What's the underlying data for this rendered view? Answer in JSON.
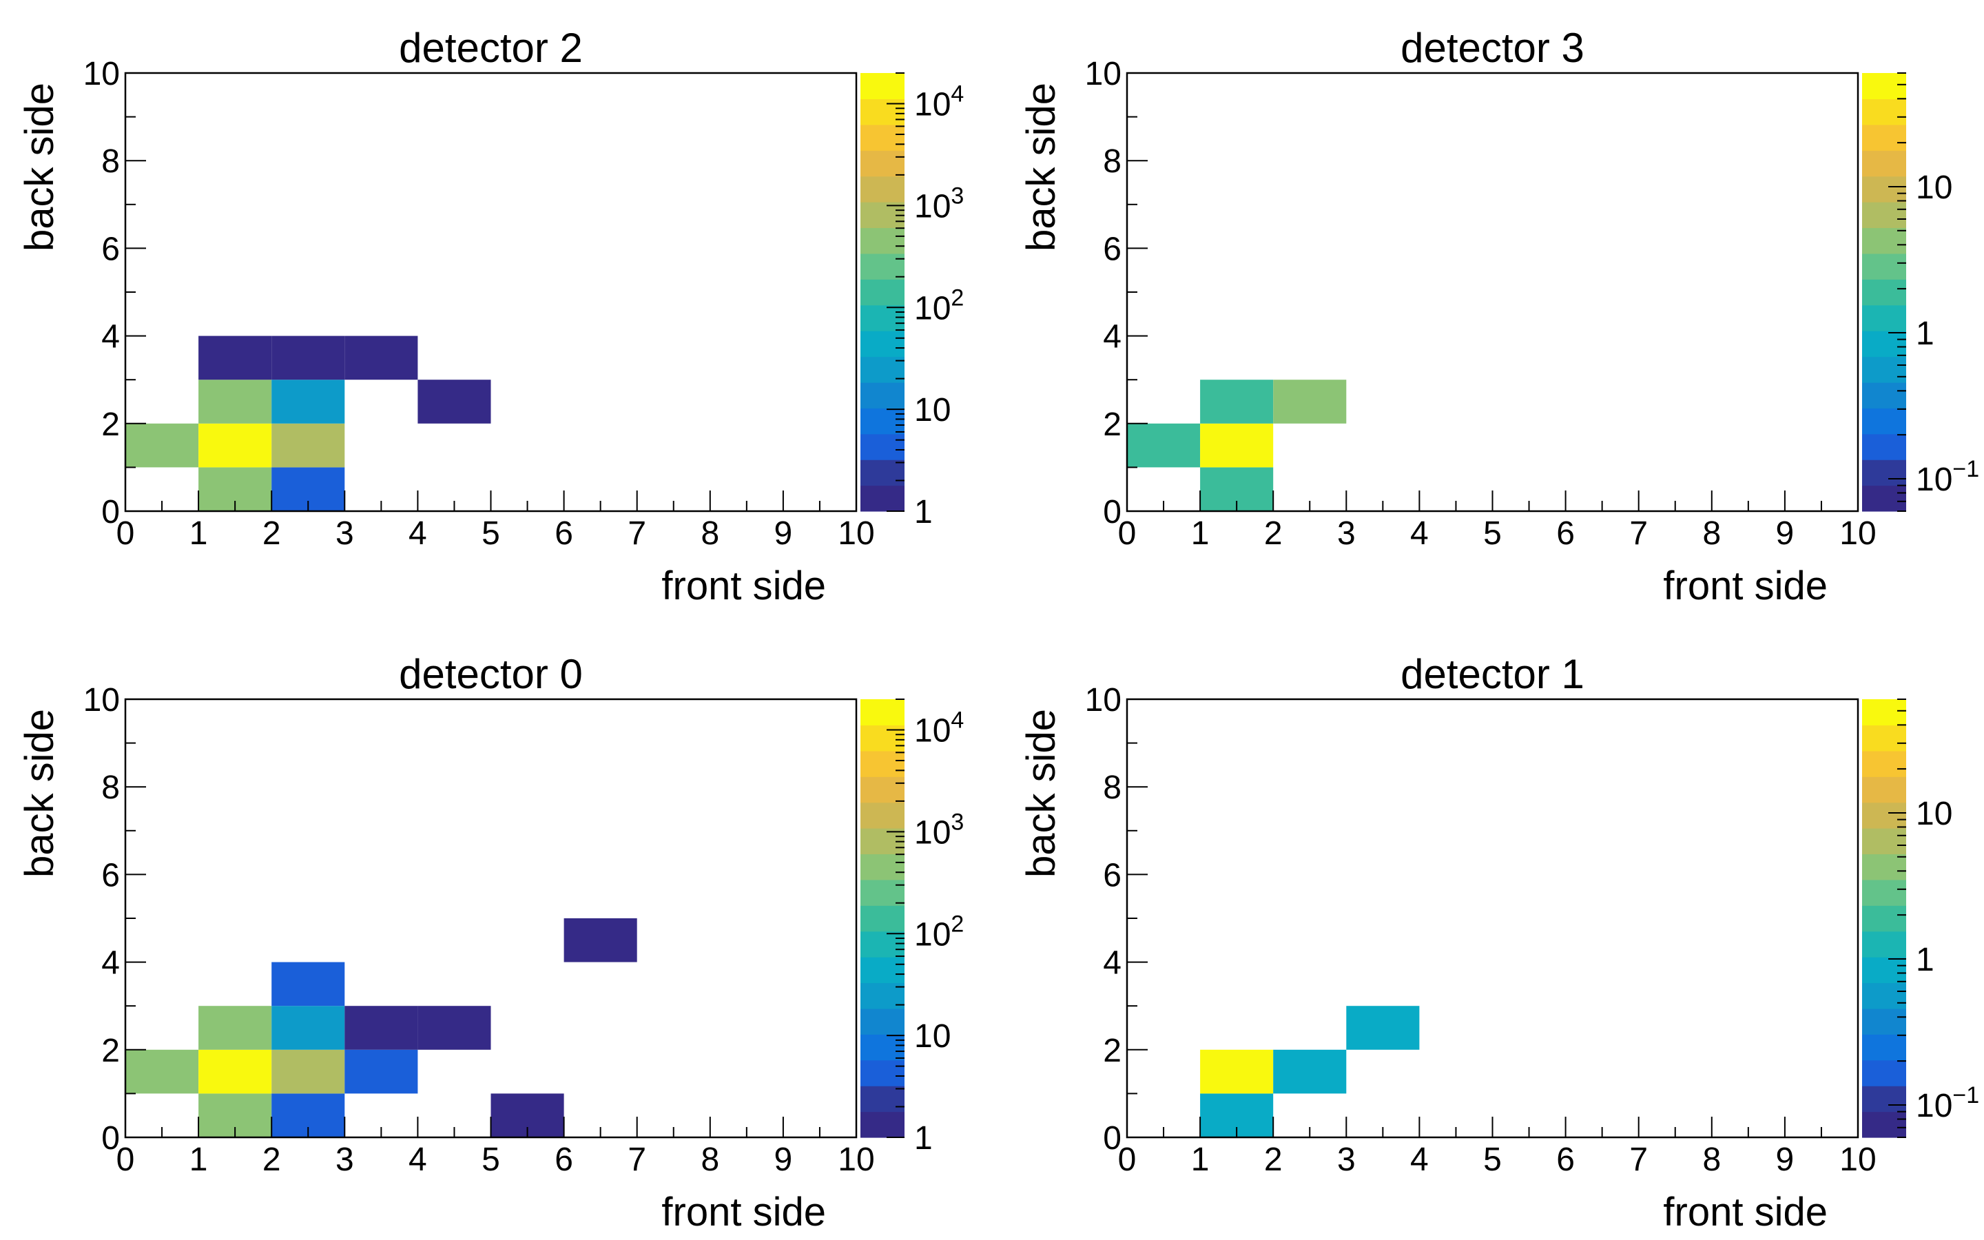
{
  "chart_data": [
    {
      "type": "heatmap",
      "title": "detector 2",
      "xlabel": "front side",
      "ylabel": "back side",
      "xlim": [
        0,
        10
      ],
      "ylim": [
        0,
        10
      ],
      "x_ticks": [
        "0",
        "1",
        "2",
        "3",
        "4",
        "5",
        "6",
        "7",
        "8",
        "9",
        "10"
      ],
      "y_ticks": [
        "0",
        "2",
        "4",
        "6",
        "8",
        "10"
      ],
      "z_scale": "log",
      "z_range": [
        1,
        20000
      ],
      "z_tick_labels": [
        {
          "value": 1,
          "base": "1",
          "exp": ""
        },
        {
          "value": 10,
          "base": "10",
          "exp": ""
        },
        {
          "value": 100,
          "base": "10",
          "exp": "2"
        },
        {
          "value": 1000,
          "base": "10",
          "exp": "3"
        },
        {
          "value": 10000,
          "base": "10",
          "exp": "4"
        }
      ],
      "cells": [
        {
          "x": 0,
          "y": 1,
          "z": 400
        },
        {
          "x": 1,
          "y": 0,
          "z": 400
        },
        {
          "x": 1,
          "y": 1,
          "z": 15000
        },
        {
          "x": 1,
          "y": 2,
          "z": 350
        },
        {
          "x": 1,
          "y": 3,
          "z": 1
        },
        {
          "x": 2,
          "y": 0,
          "z": 5
        },
        {
          "x": 2,
          "y": 1,
          "z": 700
        },
        {
          "x": 2,
          "y": 2,
          "z": 30
        },
        {
          "x": 2,
          "y": 3,
          "z": 1
        },
        {
          "x": 3,
          "y": 3,
          "z": 1
        },
        {
          "x": 4,
          "y": 2,
          "z": 1
        }
      ]
    },
    {
      "type": "heatmap",
      "title": "detector 3",
      "xlabel": "front side",
      "ylabel": "back side",
      "xlim": [
        0,
        10
      ],
      "ylim": [
        0,
        10
      ],
      "x_ticks": [
        "0",
        "1",
        "2",
        "3",
        "4",
        "5",
        "6",
        "7",
        "8",
        "9",
        "10"
      ],
      "y_ticks": [
        "0",
        "2",
        "4",
        "6",
        "8",
        "10"
      ],
      "z_scale": "log",
      "z_range": [
        0.06,
        60
      ],
      "z_tick_labels": [
        {
          "value": 0.1,
          "base": "10",
          "exp": "−1"
        },
        {
          "value": 1,
          "base": "1",
          "exp": ""
        },
        {
          "value": 10,
          "base": "10",
          "exp": ""
        }
      ],
      "cells": [
        {
          "x": 0,
          "y": 1,
          "z": 2
        },
        {
          "x": 1,
          "y": 0,
          "z": 2
        },
        {
          "x": 1,
          "y": 1,
          "z": 50
        },
        {
          "x": 1,
          "y": 2,
          "z": 2
        },
        {
          "x": 2,
          "y": 2,
          "z": 4
        }
      ]
    },
    {
      "type": "heatmap",
      "title": "detector 0",
      "xlabel": "front side",
      "ylabel": "back side",
      "xlim": [
        0,
        10
      ],
      "ylim": [
        0,
        10
      ],
      "x_ticks": [
        "0",
        "1",
        "2",
        "3",
        "4",
        "5",
        "6",
        "7",
        "8",
        "9",
        "10"
      ],
      "y_ticks": [
        "0",
        "2",
        "4",
        "6",
        "8",
        "10"
      ],
      "z_scale": "log",
      "z_range": [
        1,
        20000
      ],
      "z_tick_labels": [
        {
          "value": 1,
          "base": "1",
          "exp": ""
        },
        {
          "value": 10,
          "base": "10",
          "exp": ""
        },
        {
          "value": 100,
          "base": "10",
          "exp": "2"
        },
        {
          "value": 1000,
          "base": "10",
          "exp": "3"
        },
        {
          "value": 10000,
          "base": "10",
          "exp": "4"
        }
      ],
      "cells": [
        {
          "x": 0,
          "y": 1,
          "z": 400
        },
        {
          "x": 1,
          "y": 0,
          "z": 400
        },
        {
          "x": 1,
          "y": 1,
          "z": 15000
        },
        {
          "x": 1,
          "y": 2,
          "z": 350
        },
        {
          "x": 2,
          "y": 0,
          "z": 5
        },
        {
          "x": 2,
          "y": 1,
          "z": 1000
        },
        {
          "x": 2,
          "y": 2,
          "z": 30
        },
        {
          "x": 2,
          "y": 3,
          "z": 5
        },
        {
          "x": 3,
          "y": 1,
          "z": 5
        },
        {
          "x": 3,
          "y": 2,
          "z": 1
        },
        {
          "x": 4,
          "y": 2,
          "z": 1
        },
        {
          "x": 5,
          "y": 0,
          "z": 1
        },
        {
          "x": 6,
          "y": 4,
          "z": 1
        }
      ]
    },
    {
      "type": "heatmap",
      "title": "detector 1",
      "xlabel": "front side",
      "ylabel": "back side",
      "xlim": [
        0,
        10
      ],
      "ylim": [
        0,
        10
      ],
      "x_ticks": [
        "0",
        "1",
        "2",
        "3",
        "4",
        "5",
        "6",
        "7",
        "8",
        "9",
        "10"
      ],
      "y_ticks": [
        "0",
        "2",
        "4",
        "6",
        "8",
        "10"
      ],
      "z_scale": "log",
      "z_range": [
        0.06,
        60
      ],
      "z_tick_labels": [
        {
          "value": 0.1,
          "base": "10",
          "exp": "−1"
        },
        {
          "value": 1,
          "base": "1",
          "exp": ""
        },
        {
          "value": 10,
          "base": "10",
          "exp": ""
        }
      ],
      "cells": [
        {
          "x": 1,
          "y": 0,
          "z": 1
        },
        {
          "x": 1,
          "y": 1,
          "z": 50
        },
        {
          "x": 2,
          "y": 1,
          "z": 1
        },
        {
          "x": 3,
          "y": 2,
          "z": 1
        }
      ]
    }
  ],
  "palette": [
    "#352a87",
    "#2e3a9a",
    "#1a5fd9",
    "#0f75dd",
    "#1186cf",
    "#0d9bc9",
    "#09abc6",
    "#1bb5b3",
    "#3bbc9a",
    "#63c38a",
    "#8cc475",
    "#b0bd63",
    "#cdb753",
    "#e6b845",
    "#f7c532",
    "#f9dc1f",
    "#f9f90e"
  ]
}
